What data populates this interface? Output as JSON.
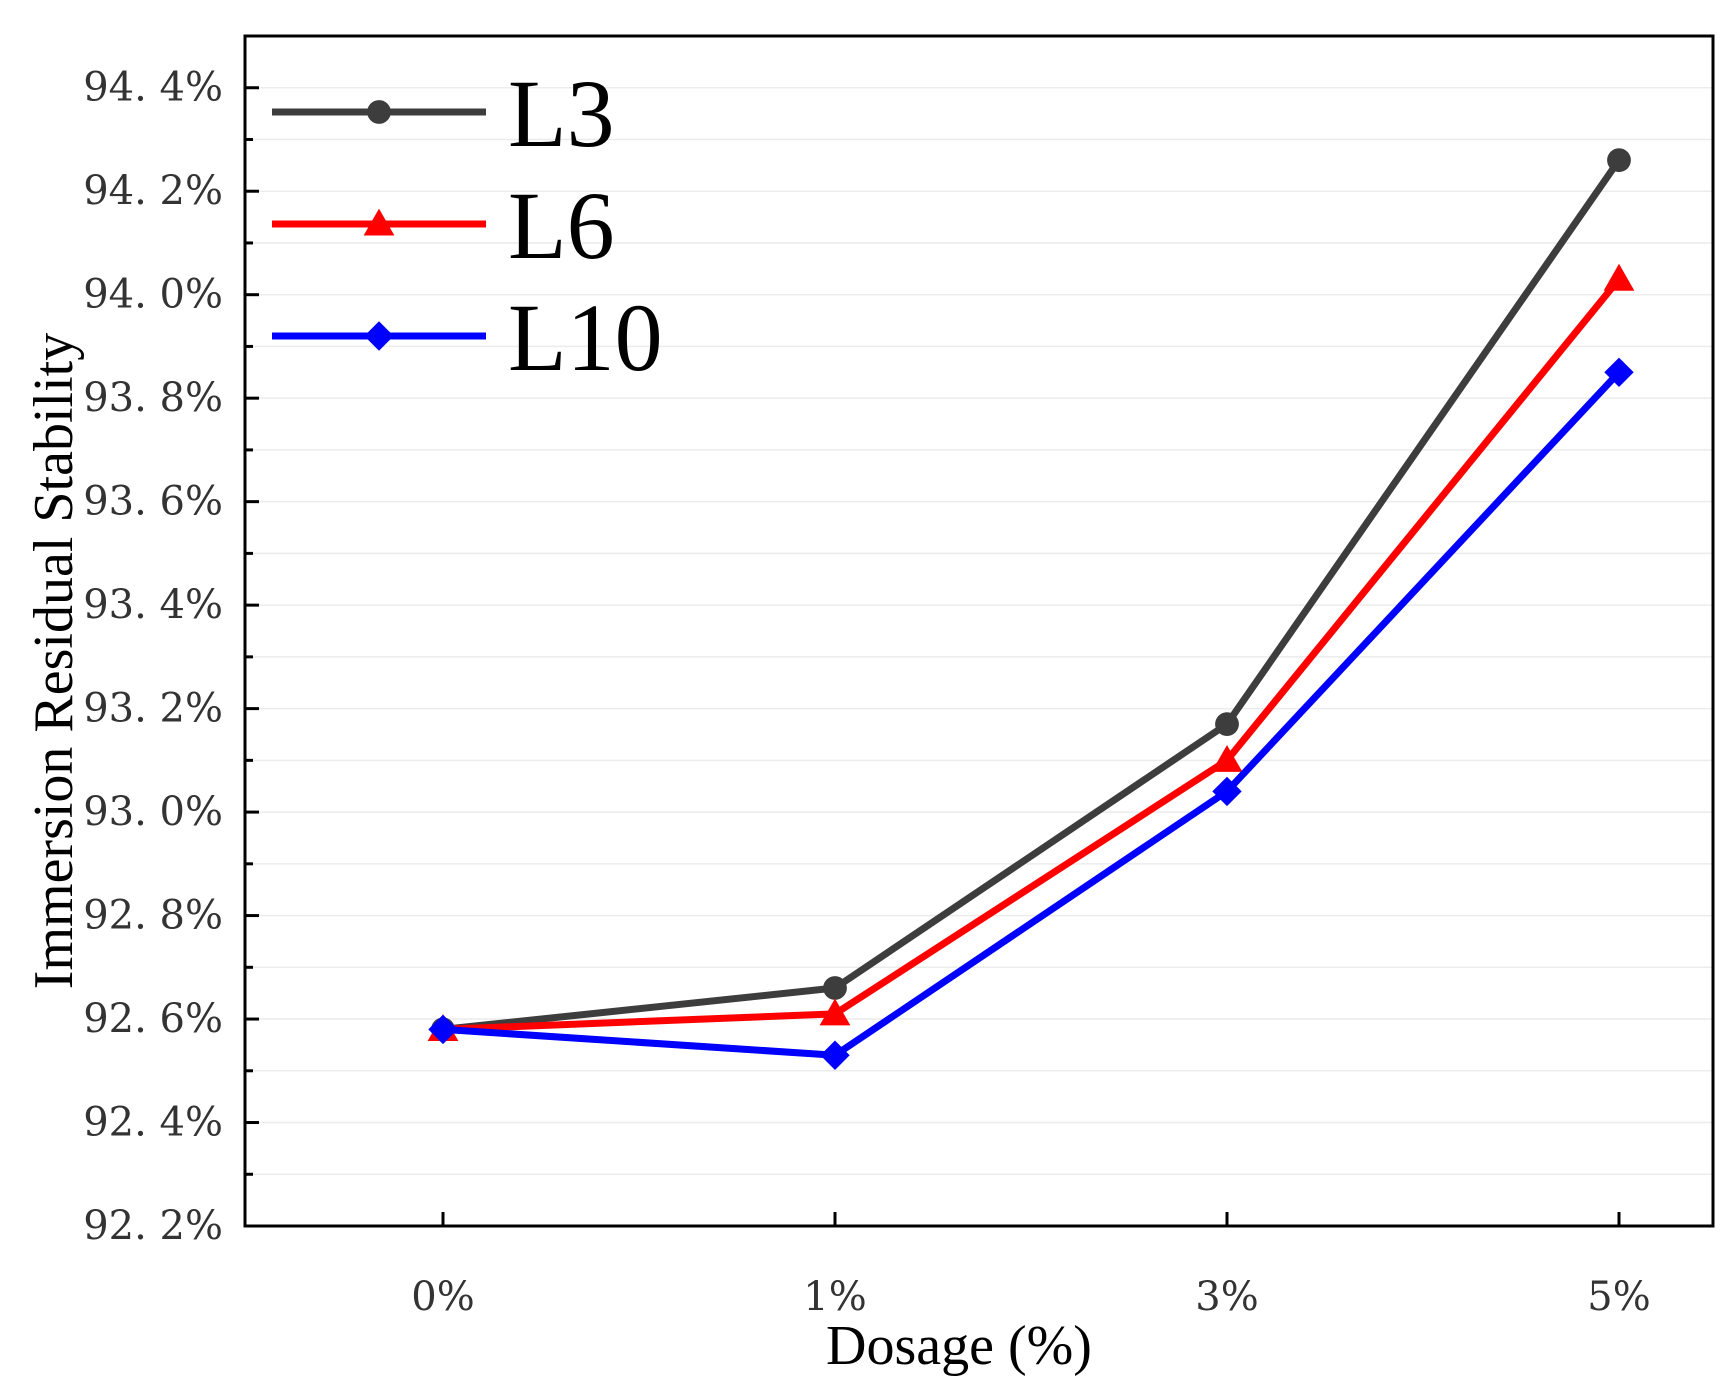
{
  "chart_data": {
    "type": "line",
    "title": "",
    "xlabel": "Dosage (%)",
    "ylabel": "Immersion Residual Stability",
    "categories": [
      "0%",
      "1%",
      "3%",
      "5%"
    ],
    "ylim": [
      92.2,
      94.5
    ],
    "yticks": [
      92.2,
      92.4,
      92.6,
      92.8,
      93.0,
      93.2,
      93.4,
      93.6,
      93.8,
      94.0,
      94.2,
      94.4
    ],
    "ytick_labels": [
      "92. 2%",
      "92. 4%",
      "92. 6%",
      "92. 8%",
      "93. 0%",
      "93. 2%",
      "93. 4%",
      "93. 6%",
      "93. 8%",
      "94. 0%",
      "94. 2%",
      "94. 4%"
    ],
    "grid": true,
    "legend_position": "top-left",
    "series": [
      {
        "name": "L3",
        "color": "#3d3d3d",
        "marker": "circle",
        "values": [
          92.58,
          92.66,
          93.17,
          94.26
        ]
      },
      {
        "name": "L6",
        "color": "#ff0000",
        "marker": "triangle",
        "values": [
          92.58,
          92.61,
          93.1,
          94.03
        ]
      },
      {
        "name": "L10",
        "color": "#0000ff",
        "marker": "diamond",
        "values": [
          92.58,
          92.53,
          93.04,
          93.85
        ]
      }
    ]
  }
}
